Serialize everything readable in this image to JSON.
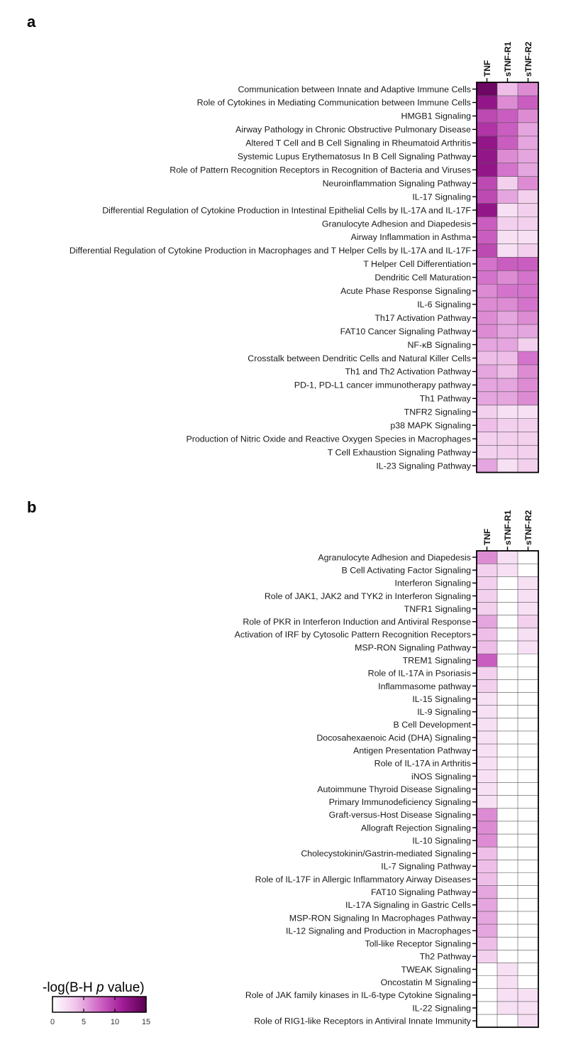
{
  "chart_data": [
    {
      "type": "heatmap",
      "panel_label": "a",
      "columns": [
        "TNF",
        "sTNF-R1",
        "sTNF-R2"
      ],
      "rows": [
        "Communication between Innate and Adaptive Immune Cells",
        "Role of Cytokines in Mediating Communication between Immune Cells",
        "HMGB1 Signaling",
        "Airway Pathology in Chronic Obstructive Pulmonary Disease",
        "Altered T Cell and B Cell Signaling in Rheumatoid Arthritis",
        "Systemic Lupus Erythematosus In B Cell Signaling Pathway",
        "Role of Pattern Recognition Receptors in Recognition of Bacteria and Viruses",
        "Neuroinflammation Signaling Pathway",
        "IL-17 Signaling",
        "Differential Regulation of Cytokine Production in Intestinal Epithelial Cells by IL-17A and IL-17F",
        "Granulocyte Adhesion and Diapedesis",
        "Airway Inflammation in Asthma",
        "Differential Regulation of Cytokine Production in Macrophages and T Helper Cells by IL-17A and IL-17F",
        "T Helper Cell Differentiation",
        "Dendritic Cell Maturation",
        "Acute Phase Response Signaling",
        "IL-6 Signaling",
        "Th17 Activation Pathway",
        "FAT10 Cancer Signaling Pathway",
        "NF-κB Signaling",
        "Crosstalk between Dendritic Cells and Natural Killer Cells",
        "Th1 and Th2 Activation Pathway",
        "PD-1, PD-L1 cancer immunotherapy pathway",
        "Th1 Pathway",
        "TNFR2 Signaling",
        "p38 MAPK Signaling",
        "Production of Nitric Oxide and Reactive Oxygen Species in Macrophages",
        "T Cell Exhaustion Signaling Pathway",
        "IL-23 Signaling Pathway"
      ],
      "values": [
        [
          14,
          4,
          6
        ],
        [
          12,
          6,
          8
        ],
        [
          9,
          8,
          6
        ],
        [
          10,
          8,
          5
        ],
        [
          12,
          8,
          5
        ],
        [
          12,
          6,
          5
        ],
        [
          12,
          7,
          5
        ],
        [
          9,
          3,
          6
        ],
        [
          9,
          5,
          3
        ],
        [
          12,
          2,
          3
        ],
        [
          8,
          3,
          3
        ],
        [
          8,
          2,
          2
        ],
        [
          9,
          2,
          3
        ],
        [
          7,
          8,
          8
        ],
        [
          7,
          6,
          7
        ],
        [
          6,
          7,
          7
        ],
        [
          6,
          6,
          7
        ],
        [
          6,
          5,
          6
        ],
        [
          6,
          5,
          5
        ],
        [
          5,
          5,
          3
        ],
        [
          4,
          4,
          7
        ],
        [
          5,
          4,
          6
        ],
        [
          5,
          5,
          6
        ],
        [
          5,
          5,
          6
        ],
        [
          3,
          2,
          2
        ],
        [
          4,
          3,
          3
        ],
        [
          3,
          3,
          3
        ],
        [
          3,
          3,
          3
        ],
        [
          5,
          2,
          3
        ]
      ]
    },
    {
      "type": "heatmap",
      "panel_label": "b",
      "columns": [
        "TNF",
        "sTNF-R1",
        "sTNF-R2"
      ],
      "rows": [
        "Agranulocyte Adhesion and Diapedesis",
        "B Cell Activating Factor Signaling",
        "Interferon Signaling",
        "Role of JAK1, JAK2 and TYK2 in Interferon Signaling",
        "TNFR1 Signaling",
        "Role of PKR in Interferon Induction and Antiviral Response",
        "Activation of IRF by Cytosolic Pattern Recognition Receptors",
        "MSP-RON Signaling Pathway",
        "TREM1 Signaling",
        "Role of IL-17A in Psoriasis",
        "Inflammasome pathway",
        "IL-15 Signaling",
        "IL-9 Signaling",
        "B Cell Development",
        "Docosahexaenoic Acid (DHA) Signaling",
        "Antigen Presentation Pathway",
        "Role of IL-17A in Arthritis",
        "iNOS Signaling",
        "Autoimmune Thyroid Disease Signaling",
        "Primary Immunodeficiency Signaling",
        "Graft-versus-Host Disease Signaling",
        "Allograft Rejection Signaling",
        "IL-10 Signaling",
        "Cholecystokinin/Gastrin-mediated Signaling",
        "IL-7 Signaling Pathway",
        "Role of IL-17F in Allergic Inflammatory Airway Diseases",
        "FAT10 Signaling Pathway",
        "IL-17A Signaling in Gastric Cells",
        "MSP-RON Signaling In Macrophages Pathway",
        "IL-12 Signaling and Production in Macrophages",
        "Toll-like Receptor Signaling",
        "Th2 Pathway",
        "TWEAK Signaling",
        "Oncostatin M Signaling",
        "Role of JAK family kinases in IL-6-type Cytokine Signaling",
        "IL-22 Signaling",
        "Role of RIG1-like Receptors in Antiviral Innate Immunity"
      ],
      "values": [
        [
          6,
          2,
          0
        ],
        [
          3,
          2,
          0
        ],
        [
          3,
          0,
          2
        ],
        [
          3,
          0,
          2
        ],
        [
          3,
          0,
          2
        ],
        [
          5,
          0,
          3
        ],
        [
          4,
          0,
          2
        ],
        [
          4,
          0,
          2
        ],
        [
          8,
          0,
          0
        ],
        [
          3,
          0,
          0
        ],
        [
          3,
          0,
          0
        ],
        [
          2,
          0,
          0
        ],
        [
          2,
          0,
          0
        ],
        [
          2,
          0,
          0
        ],
        [
          2,
          0,
          0
        ],
        [
          2,
          0,
          0
        ],
        [
          2,
          0,
          0
        ],
        [
          2,
          0,
          0
        ],
        [
          2,
          0,
          0
        ],
        [
          2,
          0,
          0
        ],
        [
          6,
          0,
          0
        ],
        [
          6,
          0,
          0
        ],
        [
          6,
          0,
          0
        ],
        [
          4,
          0,
          0
        ],
        [
          4,
          0,
          0
        ],
        [
          4,
          0,
          0
        ],
        [
          5,
          0,
          0
        ],
        [
          5,
          0,
          0
        ],
        [
          5,
          0,
          0
        ],
        [
          5,
          0,
          0
        ],
        [
          4,
          0,
          0
        ],
        [
          3,
          0,
          0
        ],
        [
          0,
          2,
          0
        ],
        [
          0,
          2,
          0
        ],
        [
          0,
          2,
          2
        ],
        [
          0,
          2,
          2
        ],
        [
          0,
          0,
          2
        ]
      ]
    }
  ],
  "colorbar": {
    "title_prefix": "-log(B-H ",
    "title_italic": "p",
    "title_suffix": " value)",
    "range": [
      0,
      15
    ],
    "ticks": [
      "0",
      "5",
      "10",
      "15"
    ],
    "color_low": "#ffffff",
    "color_high": "#5a0050"
  }
}
